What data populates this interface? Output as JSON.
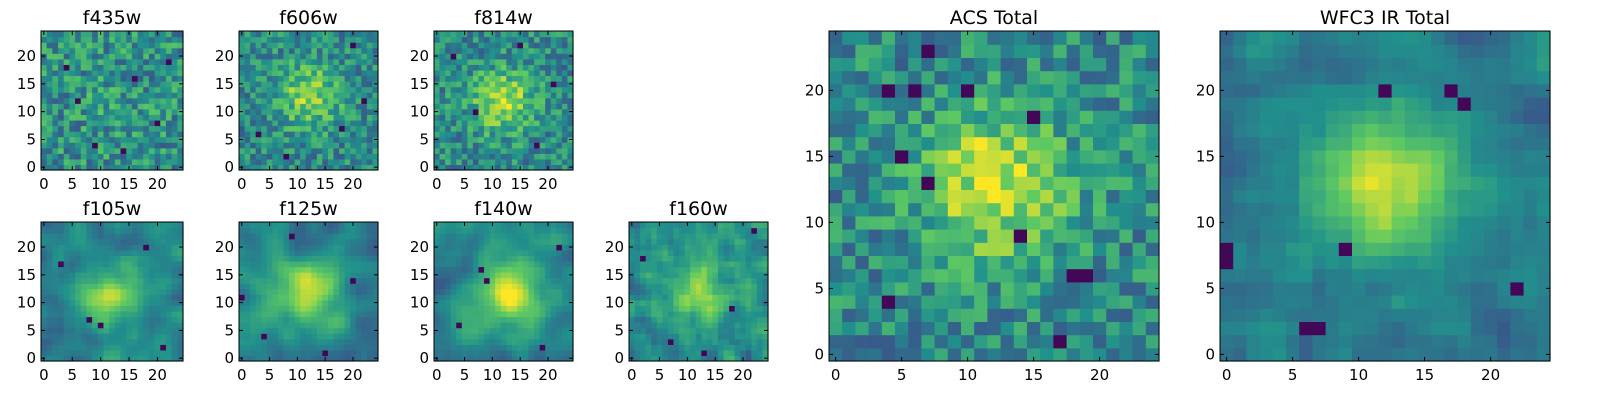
{
  "figure": {
    "background": "#ffffff",
    "colormap": "viridis",
    "colormap_stops": [
      "#440154",
      "#3b528b",
      "#21918c",
      "#5ec962",
      "#fde725"
    ]
  },
  "chart_data": [
    {
      "type": "heatmap",
      "title": "f435w",
      "grid": [
        25,
        25
      ],
      "xlim": [
        -0.5,
        24.5
      ],
      "ylim": [
        -0.5,
        24.5
      ],
      "xticks": [
        0,
        5,
        10,
        15,
        20
      ],
      "yticks": [
        0,
        5,
        10,
        15,
        20
      ],
      "pattern": "noise",
      "seed": 11,
      "peak": [
        12,
        12
      ],
      "peak_strength": 0.05,
      "noise": 0.8,
      "smooth": 0,
      "dark_spots": [
        [
          4,
          18
        ],
        [
          9,
          4
        ],
        [
          16,
          16
        ],
        [
          20,
          8
        ],
        [
          6,
          12
        ],
        [
          14,
          3
        ],
        [
          22,
          19
        ]
      ]
    },
    {
      "type": "heatmap",
      "title": "f606w",
      "grid": [
        25,
        25
      ],
      "xlim": [
        -0.5,
        24.5
      ],
      "ylim": [
        -0.5,
        24.5
      ],
      "xticks": [
        0,
        5,
        10,
        15,
        20
      ],
      "yticks": [
        0,
        5,
        10,
        15,
        20
      ],
      "pattern": "noise",
      "seed": 23,
      "peak": [
        12,
        13
      ],
      "peak_strength": 0.35,
      "noise": 0.7,
      "smooth": 0,
      "dark_spots": [
        [
          20,
          22
        ],
        [
          3,
          6
        ],
        [
          8,
          2
        ],
        [
          18,
          7
        ],
        [
          22,
          12
        ]
      ]
    },
    {
      "type": "heatmap",
      "title": "f814w",
      "grid": [
        25,
        25
      ],
      "xlim": [
        -0.5,
        24.5
      ],
      "ylim": [
        -0.5,
        24.5
      ],
      "xticks": [
        0,
        5,
        10,
        15,
        20
      ],
      "yticks": [
        0,
        5,
        10,
        15,
        20
      ],
      "pattern": "noise",
      "seed": 37,
      "peak": [
        12,
        12
      ],
      "peak_strength": 0.4,
      "noise": 0.7,
      "smooth": 0,
      "dark_spots": [
        [
          3,
          20
        ],
        [
          18,
          4
        ],
        [
          21,
          15
        ],
        [
          7,
          10
        ],
        [
          15,
          22
        ]
      ]
    },
    {
      "type": "heatmap",
      "title": "f105w",
      "grid": [
        25,
        25
      ],
      "xlim": [
        -0.5,
        24.5
      ],
      "ylim": [
        -0.5,
        24.5
      ],
      "xticks": [
        0,
        5,
        10,
        15,
        20
      ],
      "yticks": [
        0,
        5,
        10,
        15,
        20
      ],
      "pattern": "smooth",
      "seed": 41,
      "peak": [
        12,
        11
      ],
      "peak_strength": 0.45,
      "noise": 0.6,
      "smooth": 2,
      "dark_spots": [
        [
          10,
          6
        ],
        [
          3,
          17
        ],
        [
          21,
          2
        ],
        [
          18,
          20
        ],
        [
          8,
          7
        ]
      ]
    },
    {
      "type": "heatmap",
      "title": "f125w",
      "grid": [
        25,
        25
      ],
      "xlim": [
        -0.5,
        24.5
      ],
      "ylim": [
        -0.5,
        24.5
      ],
      "xticks": [
        0,
        5,
        10,
        15,
        20
      ],
      "yticks": [
        0,
        5,
        10,
        15,
        20
      ],
      "pattern": "smooth",
      "seed": 53,
      "peak": [
        12,
        12
      ],
      "peak_strength": 0.45,
      "noise": 0.6,
      "smooth": 2,
      "dark_spots": [
        [
          0,
          11
        ],
        [
          4,
          4
        ],
        [
          15,
          1
        ],
        [
          20,
          14
        ],
        [
          9,
          22
        ]
      ]
    },
    {
      "type": "heatmap",
      "title": "f140w",
      "grid": [
        25,
        25
      ],
      "xlim": [
        -0.5,
        24.5
      ],
      "ylim": [
        -0.5,
        24.5
      ],
      "xticks": [
        0,
        5,
        10,
        15,
        20
      ],
      "yticks": [
        0,
        5,
        10,
        15,
        20
      ],
      "pattern": "smooth",
      "seed": 67,
      "peak": [
        13,
        12
      ],
      "peak_strength": 0.5,
      "noise": 0.6,
      "smooth": 2,
      "dark_spots": [
        [
          8,
          16
        ],
        [
          9,
          14
        ],
        [
          19,
          2
        ],
        [
          4,
          6
        ],
        [
          22,
          20
        ]
      ]
    },
    {
      "type": "heatmap",
      "title": "f160w",
      "grid": [
        25,
        25
      ],
      "xlim": [
        -0.5,
        24.5
      ],
      "ylim": [
        -0.5,
        24.5
      ],
      "xticks": [
        0,
        5,
        10,
        15,
        20
      ],
      "yticks": [
        0,
        5,
        10,
        15,
        20
      ],
      "pattern": "smooth",
      "seed": 79,
      "peak": [
        12,
        12
      ],
      "peak_strength": 0.35,
      "noise": 0.7,
      "smooth": 1,
      "dark_spots": [
        [
          13,
          1
        ],
        [
          2,
          18
        ],
        [
          18,
          9
        ],
        [
          7,
          3
        ],
        [
          22,
          23
        ]
      ]
    },
    {
      "type": "heatmap",
      "title": "ACS Total",
      "grid": [
        25,
        25
      ],
      "xlim": [
        -0.5,
        24.5
      ],
      "ylim": [
        -0.5,
        24.5
      ],
      "xticks": [
        0,
        5,
        10,
        15,
        20
      ],
      "yticks": [
        0,
        5,
        10,
        15,
        20
      ],
      "pattern": "blocky",
      "seed": 97,
      "peak": [
        12,
        13
      ],
      "peak_strength": 0.45,
      "noise": 0.7,
      "smooth": 0,
      "dark_spots": [
        [
          7,
          23
        ],
        [
          4,
          20
        ],
        [
          6,
          20
        ],
        [
          10,
          20
        ],
        [
          15,
          18
        ],
        [
          7,
          13
        ],
        [
          5,
          15
        ],
        [
          18,
          6
        ],
        [
          19,
          6
        ],
        [
          4,
          4
        ],
        [
          17,
          1
        ],
        [
          14,
          9
        ]
      ]
    },
    {
      "type": "heatmap",
      "title": "WFC3 IR Total",
      "grid": [
        25,
        25
      ],
      "xlim": [
        -0.5,
        24.5
      ],
      "ylim": [
        -0.5,
        24.5
      ],
      "xticks": [
        0,
        5,
        10,
        15,
        20
      ],
      "yticks": [
        0,
        5,
        10,
        15,
        20
      ],
      "pattern": "blocky",
      "seed": 113,
      "peak": [
        12,
        13
      ],
      "peak_strength": 0.5,
      "noise": 0.5,
      "smooth": 1,
      "dark_spots": [
        [
          0,
          8
        ],
        [
          0,
          7
        ],
        [
          9,
          8
        ],
        [
          6,
          2
        ],
        [
          7,
          2
        ],
        [
          18,
          19
        ],
        [
          17,
          20
        ],
        [
          22,
          5
        ],
        [
          12,
          20
        ]
      ]
    }
  ]
}
